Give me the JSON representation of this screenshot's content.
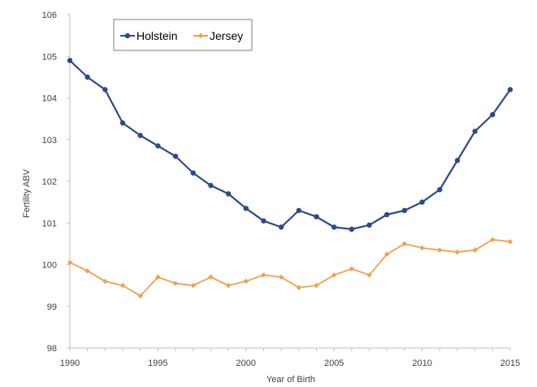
{
  "chart_data": {
    "type": "line",
    "xlabel": "Year of Birth",
    "ylabel": "Fertility ABV",
    "xlim": [
      1990,
      2015
    ],
    "ylim": [
      98,
      106
    ],
    "x_ticks": [
      1990,
      1995,
      2000,
      2005,
      2010,
      2015
    ],
    "y_ticks": [
      98,
      99,
      100,
      101,
      102,
      103,
      104,
      105,
      106
    ],
    "grid": false,
    "legend_position": "top-left",
    "x": [
      1990,
      1991,
      1992,
      1993,
      1994,
      1995,
      1996,
      1997,
      1998,
      1999,
      2000,
      2001,
      2002,
      2003,
      2004,
      2005,
      2006,
      2007,
      2008,
      2009,
      2010,
      2011,
      2012,
      2013,
      2014,
      2015
    ],
    "series": [
      {
        "name": "Holstein",
        "color": "#2e4a86",
        "marker": "circle",
        "values": [
          104.9,
          104.5,
          104.2,
          103.4,
          103.1,
          102.85,
          102.6,
          102.2,
          101.9,
          101.7,
          101.35,
          101.05,
          100.9,
          101.3,
          101.15,
          100.9,
          100.85,
          100.95,
          101.2,
          101.3,
          101.5,
          101.8,
          102.5,
          103.2,
          103.6,
          104.2
        ]
      },
      {
        "name": "Jersey",
        "color": "#f0a050",
        "marker": "diamond",
        "values": [
          100.05,
          99.85,
          99.6,
          99.5,
          99.25,
          99.7,
          99.55,
          99.5,
          99.7,
          99.5,
          99.6,
          99.75,
          99.7,
          99.45,
          99.5,
          99.75,
          99.9,
          99.75,
          100.25,
          100.5,
          100.4,
          100.35,
          100.3,
          100.35,
          100.6,
          100.55
        ]
      }
    ]
  }
}
